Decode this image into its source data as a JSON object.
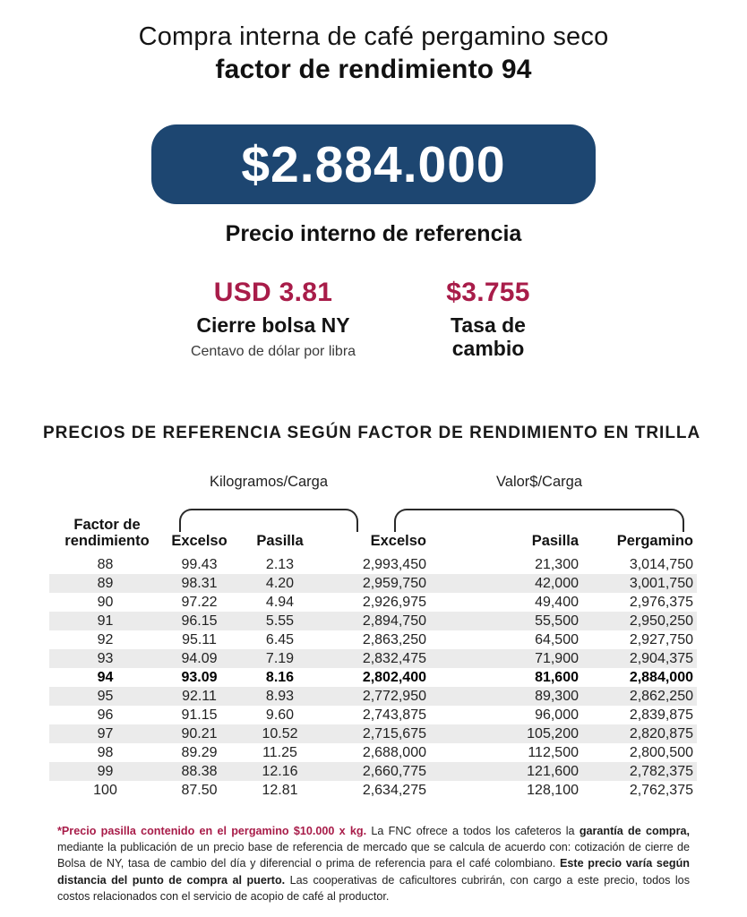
{
  "header": {
    "title_line1": "Compra interna de café pergamino seco",
    "title_line2": "factor de rendimiento 94"
  },
  "price_badge": {
    "value": "$2.884.000",
    "label": "Precio interno de referencia"
  },
  "metrics": {
    "ny_close": {
      "value": "USD 3.81",
      "label": "Cierre bolsa NY",
      "sublabel": "Centavo de dólar por libra"
    },
    "exchange_rate": {
      "value": "$3.755",
      "label": "Tasa de cambio"
    }
  },
  "table_section": {
    "title": "PRECIOS DE REFERENCIA SEGÚN FACTOR DE RENDIMIENTO EN TRILLA",
    "group_headers": {
      "kilograms": "Kilogramos/Carga",
      "value": "Valor$/Carga"
    },
    "columns": [
      "Factor de rendimiento",
      "Excelso",
      "Pasilla",
      "Excelso",
      "Pasilla",
      "Pergamino"
    ],
    "highlight_factor": "94",
    "rows": [
      [
        "88",
        "99.43",
        "2.13",
        "2,993,450",
        "21,300",
        "3,014,750"
      ],
      [
        "89",
        "98.31",
        "4.20",
        "2,959,750",
        "42,000",
        "3,001,750"
      ],
      [
        "90",
        "97.22",
        "4.94",
        "2,926,975",
        "49,400",
        "2,976,375"
      ],
      [
        "91",
        "96.15",
        "5.55",
        "2,894,750",
        "55,500",
        "2,950,250"
      ],
      [
        "92",
        "95.11",
        "6.45",
        "2,863,250",
        "64,500",
        "2,927,750"
      ],
      [
        "93",
        "94.09",
        "7.19",
        "2,832,475",
        "71,900",
        "2,904,375"
      ],
      [
        "94",
        "93.09",
        "8.16",
        "2,802,400",
        "81,600",
        "2,884,000"
      ],
      [
        "95",
        "92.11",
        "8.93",
        "2,772,950",
        "89,300",
        "2,862,250"
      ],
      [
        "96",
        "91.15",
        "9.60",
        "2,743,875",
        "96,000",
        "2,839,875"
      ],
      [
        "97",
        "90.21",
        "10.52",
        "2,715,675",
        "105,200",
        "2,820,875"
      ],
      [
        "98",
        "89.29",
        "11.25",
        "2,688,000",
        "112,500",
        "2,800,500"
      ],
      [
        "99",
        "88.38",
        "12.16",
        "2,660,775",
        "121,600",
        "2,782,375"
      ],
      [
        "100",
        "87.50",
        "12.81",
        "2,634,275",
        "128,100",
        "2,762,375"
      ]
    ]
  },
  "footnote": {
    "segments": [
      {
        "style": "crimson-bold",
        "text": "*Precio pasilla contenido en el pergamino $10.000 x kg."
      },
      {
        "style": "regular",
        "text": " La FNC ofrece a todos los cafeteros la "
      },
      {
        "style": "bold",
        "text": "garantía de compra,"
      },
      {
        "style": "regular",
        "text": " mediante la publicación de un precio base de referencia de mercado que se calcula de acuerdo con: cotización de cierre de Bolsa de NY, tasa de cambio del día y diferencial o prima de referencia para el café colombiano. "
      },
      {
        "style": "bold",
        "text": "Este precio varía según distancia del punto de compra al puerto."
      },
      {
        "style": "regular",
        "text": " Las cooperativas de caficultores cubrirán, con cargo a este precio, todos los costos relacionados con el servicio de acopio de café al productor."
      }
    ]
  },
  "colors": {
    "badge_navy": "#1d4671",
    "accent_crimson": "#a81c49",
    "row_stripe": "#ebebeb",
    "text": "#161616"
  }
}
